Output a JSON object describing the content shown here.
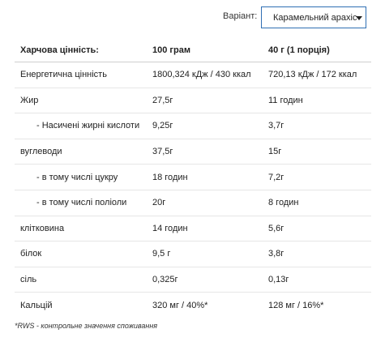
{
  "variant": {
    "label": "Варіант:",
    "selected": "Карамельний арахіс"
  },
  "table": {
    "header": [
      "Харчова цінність:",
      "100 грам",
      "40 г (1 порція)"
    ],
    "rows": [
      [
        "Енергетична цінність",
        "1800,324 кДж / 430 ккал",
        "720,13 кДж / 172 ккал"
      ],
      [
        "Жир",
        "27,5г",
        "11 годин"
      ],
      [
        "- Насичені жирні кислоти",
        "9,25г",
        "3,7г"
      ],
      [
        "вуглеводи",
        "37,5г",
        "15г"
      ],
      [
        "- в тому числі цукру",
        "18 годин",
        "7,2г"
      ],
      [
        "- в тому числі поліоли",
        "20г",
        "8 годин"
      ],
      [
        "клітковина",
        "14 годин",
        "5,6г"
      ],
      [
        "білок",
        "9,5 г",
        "3,8г"
      ],
      [
        "сіль",
        "0,325г",
        "0,13г"
      ],
      [
        "Кальцій",
        "320 мг / 40%*",
        "128 мг / 16%*"
      ]
    ]
  },
  "footnote": "*RWS - контрольне значення споживання"
}
